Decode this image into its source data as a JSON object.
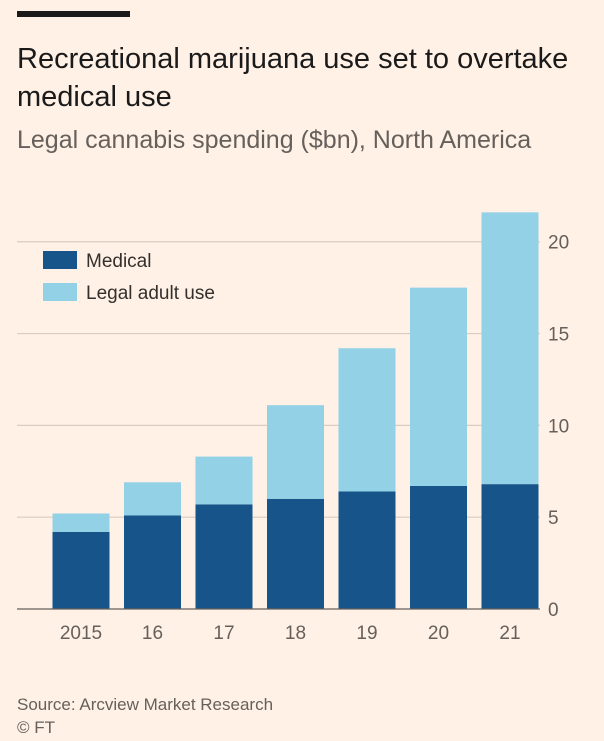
{
  "header": {
    "title": "Recreational marijuana use set to overtake medical use",
    "subtitle": "Legal cannabis spending ($bn), North America"
  },
  "footer": {
    "source": "Source: Arcview Market Research",
    "copyright": "© FT"
  },
  "colors": {
    "medical": "#16548a",
    "adult_use": "#92d1e6",
    "grid": "#d9ccc1",
    "tick_text": "#66605c",
    "legend_text": "#33302e"
  },
  "chart_data": {
    "type": "bar",
    "stacked": true,
    "title": "Recreational marijuana use set to overtake medical use",
    "subtitle": "Legal cannabis spending ($bn), North America",
    "categories": [
      "2015",
      "16",
      "17",
      "18",
      "19",
      "20",
      "21"
    ],
    "series": [
      {
        "name": "Medical",
        "values": [
          4.2,
          5.1,
          5.7,
          6.0,
          6.4,
          6.7,
          6.8
        ]
      },
      {
        "name": "Legal adult use",
        "values": [
          1.0,
          1.8,
          2.6,
          5.1,
          7.8,
          10.8,
          14.8
        ]
      }
    ],
    "ylim": [
      0,
      22
    ],
    "yticks": [
      0,
      5,
      10,
      15,
      20
    ],
    "ytick_labels": [
      "0",
      "5",
      "10",
      "15",
      "20"
    ],
    "y_axis_side": "right",
    "xlabel": "",
    "ylabel": "",
    "grid": true,
    "legend_position": "top-left"
  }
}
